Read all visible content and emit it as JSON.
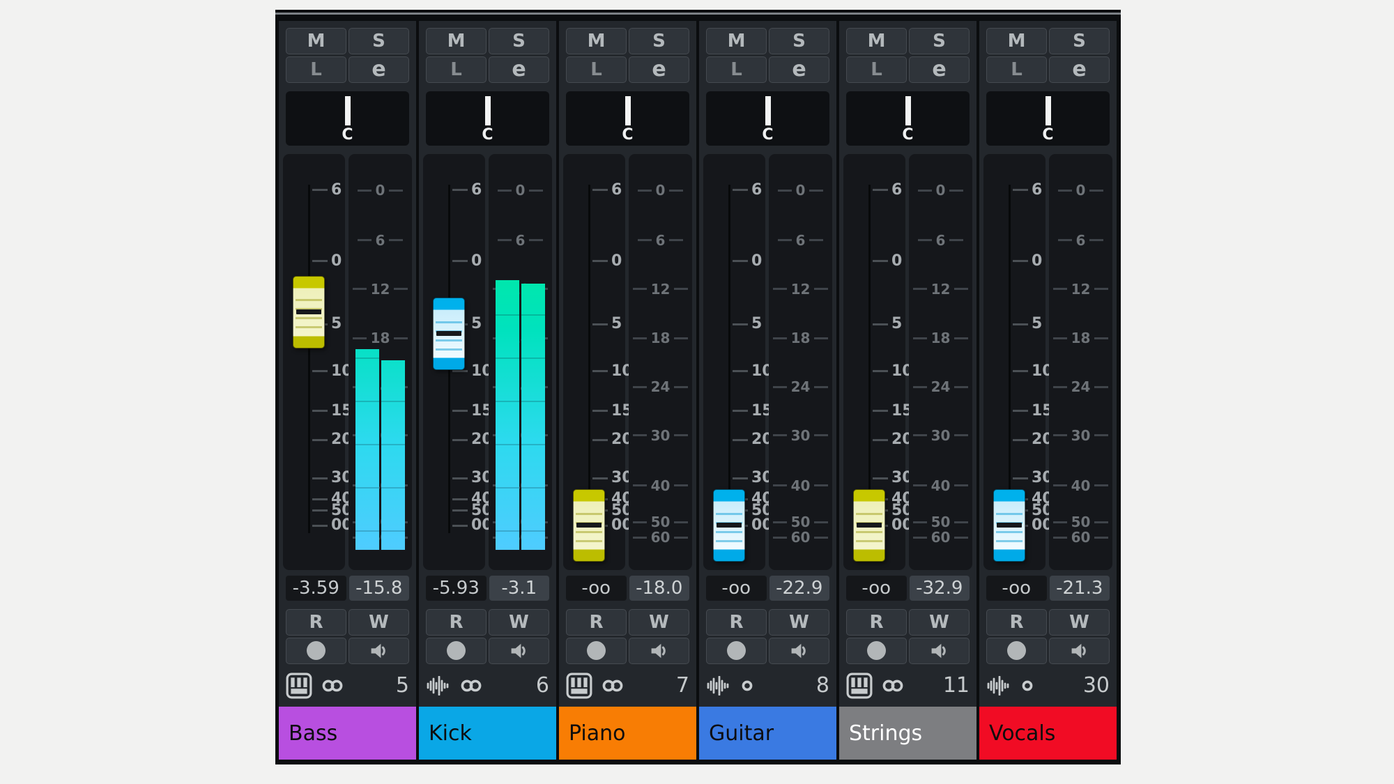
{
  "mixer": {
    "buttons": {
      "mute": "M",
      "solo": "S",
      "listen": "L",
      "edit": "e",
      "read": "R",
      "write": "W"
    },
    "pan_label": "C",
    "fader_scale": [
      {
        "label": "6",
        "pct": 8.7
      },
      {
        "label": "0",
        "pct": 25.8
      },
      {
        "label": "5",
        "pct": 41.0
      },
      {
        "label": "10",
        "pct": 52.3
      },
      {
        "label": "15",
        "pct": 61.8
      },
      {
        "label": "20",
        "pct": 68.8
      },
      {
        "label": "30",
        "pct": 78.0
      },
      {
        "label": "40",
        "pct": 83.0
      },
      {
        "label": "50",
        "pct": 85.8
      },
      {
        "label": "00",
        "pct": 89.4
      }
    ],
    "meter_scale": [
      {
        "label": "0",
        "pct": 8.8
      },
      {
        "label": "6",
        "pct": 20.8
      },
      {
        "label": "12",
        "pct": 32.5
      },
      {
        "label": "18",
        "pct": 44.3
      },
      {
        "label": "24",
        "pct": 56.0
      },
      {
        "label": "30",
        "pct": 67.7
      },
      {
        "label": "40",
        "pct": 79.7
      },
      {
        "label": "50",
        "pct": 88.5
      },
      {
        "label": "60",
        "pct": 92.2
      }
    ],
    "channels": [
      {
        "name": "Bass",
        "color": "#b84fe0",
        "name_text_color": "#0d0d0d",
        "fader_value": "-3.59",
        "peak_value": "-15.8",
        "fader_pos_pct": 38.0,
        "cap_color": "yellow",
        "meter_left_pct": 55,
        "meter_right_pct": 52,
        "source_icon": "piano-keys",
        "channel_mode": "stereo",
        "output_number": "5"
      },
      {
        "name": "Kick",
        "color": "#0aa7e6",
        "name_text_color": "#0d0d0d",
        "fader_value": "-5.93",
        "peak_value": "-3.1",
        "fader_pos_pct": 43.3,
        "cap_color": "blue",
        "meter_left_pct": 74,
        "meter_right_pct": 73,
        "source_icon": "waveform",
        "channel_mode": "stereo",
        "output_number": "6"
      },
      {
        "name": "Piano",
        "color": "#f87d04",
        "name_text_color": "#0d0d0d",
        "fader_value": "-oo",
        "peak_value": "-18.0",
        "fader_pos_pct": 89.4,
        "cap_color": "yellow",
        "meter_left_pct": 0,
        "meter_right_pct": 0,
        "source_icon": "piano-keys",
        "channel_mode": "stereo",
        "output_number": "7"
      },
      {
        "name": "Guitar",
        "color": "#3a7ae2",
        "name_text_color": "#0d0d0d",
        "fader_value": "-oo",
        "peak_value": "-22.9",
        "fader_pos_pct": 89.4,
        "cap_color": "blue",
        "meter_left_pct": 0,
        "meter_right_pct": 0,
        "source_icon": "waveform",
        "channel_mode": "mono",
        "output_number": "8"
      },
      {
        "name": "Strings",
        "color": "#7d7e81",
        "name_text_color": "#ffffff",
        "fader_value": "-oo",
        "peak_value": "-32.9",
        "fader_pos_pct": 89.4,
        "cap_color": "yellow",
        "meter_left_pct": 0,
        "meter_right_pct": 0,
        "source_icon": "piano-keys",
        "channel_mode": "stereo",
        "output_number": "11"
      },
      {
        "name": "Vocals",
        "color": "#f10c24",
        "name_text_color": "#0d0d0d",
        "fader_value": "-oo",
        "peak_value": "-21.3",
        "fader_pos_pct": 89.4,
        "cap_color": "blue",
        "meter_left_pct": 0,
        "meter_right_pct": 0,
        "source_icon": "waveform",
        "channel_mode": "mono",
        "output_number": "30"
      }
    ]
  }
}
